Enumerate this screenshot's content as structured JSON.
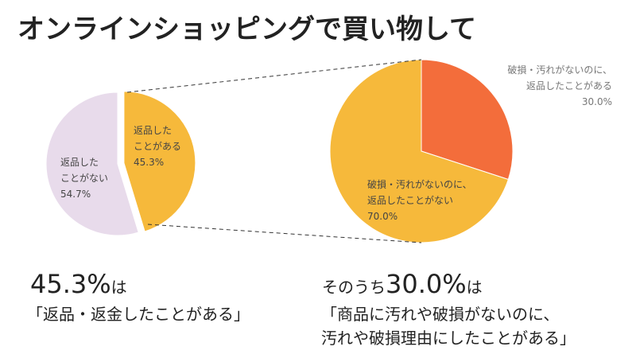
{
  "title": "オンラインショッピングで買い物して",
  "chart_data": [
    {
      "type": "pie",
      "categories": [
        [
          "返品した",
          "ことがある"
        ],
        [
          "返品した",
          "ことがない"
        ]
      ],
      "values": [
        45.3,
        54.7
      ],
      "value_labels": [
        "45.3%",
        "54.7%"
      ],
      "colors": [
        "#f6b93b",
        "#e8dbeb"
      ]
    },
    {
      "type": "pie",
      "categories": [
        [
          "破損・汚れがないのに、",
          "返品したことがある"
        ],
        [
          "破損・汚れがないのに、",
          "返品したことがない"
        ]
      ],
      "values": [
        30.0,
        70.0
      ],
      "value_labels": [
        "30.0%",
        "70.0%"
      ],
      "colors": [
        "#f36d3b",
        "#f6b93b"
      ]
    }
  ],
  "captions": [
    {
      "highlight": "45.3%",
      "suffix": "は",
      "lines": [
        "「返品・返金したことがある」"
      ]
    },
    {
      "prefix": "そのうち",
      "highlight": "30.0%",
      "suffix": "は",
      "lines": [
        "「商品に汚れや破損がないのに、",
        "汚れや破損理由にしたことがある」"
      ]
    }
  ]
}
